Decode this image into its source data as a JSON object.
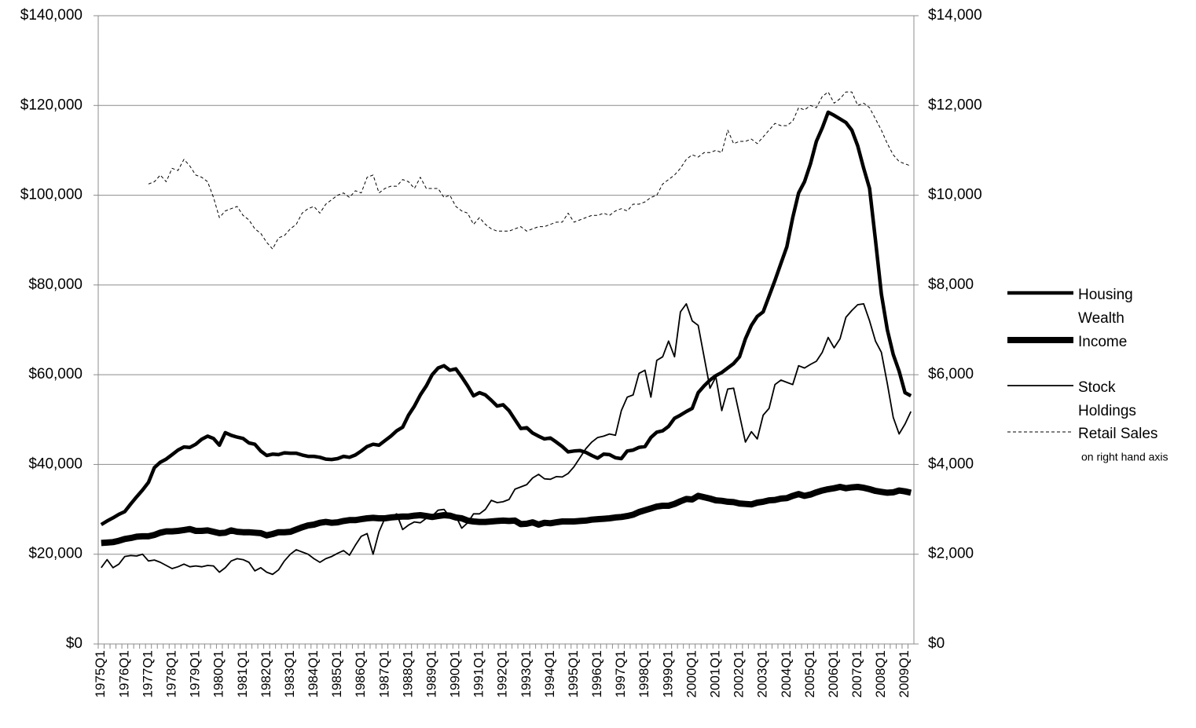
{
  "chart_data": {
    "type": "line",
    "categories": [
      "1975Q1",
      null,
      null,
      null,
      "1976Q1",
      null,
      null,
      null,
      "1977Q1",
      null,
      null,
      null,
      "1978Q1",
      null,
      null,
      null,
      "1979Q1",
      null,
      null,
      null,
      "1980Q1",
      null,
      null,
      null,
      "1981Q1",
      null,
      null,
      null,
      "1982Q1",
      null,
      null,
      null,
      "1983Q1",
      null,
      null,
      null,
      "1984Q1",
      null,
      null,
      null,
      "1985Q1",
      null,
      null,
      null,
      "1986Q1",
      null,
      null,
      null,
      "1987Q1",
      null,
      null,
      null,
      "1988Q1",
      null,
      null,
      null,
      "1989Q1",
      null,
      null,
      null,
      "1990Q1",
      null,
      null,
      null,
      "1991Q1",
      null,
      null,
      null,
      "1992Q1",
      null,
      null,
      null,
      "1993Q1",
      null,
      null,
      null,
      "1994Q1",
      null,
      null,
      null,
      "1995Q1",
      null,
      null,
      null,
      "1996Q1",
      null,
      null,
      null,
      "1997Q1",
      null,
      null,
      null,
      "1998Q1",
      null,
      null,
      null,
      "1999Q1",
      null,
      null,
      null,
      "2000Q1",
      null,
      null,
      null,
      "2001Q1",
      null,
      null,
      null,
      "2002Q1",
      null,
      null,
      null,
      "2003Q1",
      null,
      null,
      null,
      "2004Q1",
      null,
      null,
      null,
      "2005Q1",
      null,
      null,
      null,
      "2006Q1",
      null,
      null,
      null,
      "2007Q1",
      null,
      null,
      null,
      "2008Q1",
      null,
      null,
      null,
      "2009Q1",
      null
    ],
    "series": [
      {
        "name": "Housing Wealth",
        "color": "#000000",
        "values": [
          26600,
          27400,
          28100,
          28900,
          29500,
          31200,
          32800,
          34300,
          36000,
          39300,
          40500,
          41200,
          42200,
          43200,
          43900,
          43800,
          44500,
          45600,
          46300,
          45800,
          44300,
          47100,
          46500,
          46100,
          45800,
          44800,
          44500,
          43000,
          42000,
          42300,
          42200,
          42600,
          42500,
          42500,
          42100,
          41800,
          41800,
          41600,
          41200,
          41100,
          41300,
          41800,
          41600,
          42100,
          43000,
          44000,
          44500,
          44300,
          45300,
          46300,
          47500,
          48300,
          51000,
          53000,
          55500,
          57500,
          60000,
          61500,
          62000,
          61000,
          61300,
          59500,
          57500,
          55300,
          56000,
          55500,
          54300,
          53000,
          53300,
          52000,
          50000,
          48000,
          48200,
          47000,
          46300,
          45700,
          45900,
          45000,
          44000,
          42800,
          43000,
          43100,
          42700,
          42000,
          41400,
          42300,
          42200,
          41500,
          41300,
          43000,
          43200,
          43800,
          44000,
          46000,
          47200,
          47500,
          48500,
          50300,
          51000,
          51800,
          52500,
          56000,
          57500,
          58800,
          59800,
          60500,
          61500,
          62500,
          64000,
          68000,
          71000,
          73000,
          74000,
          77500,
          81000,
          84800,
          88500,
          95000,
          100500,
          103000,
          107000,
          112000,
          115000,
          118500,
          117800,
          117000,
          116200,
          114500,
          111000,
          106000,
          101500,
          90000,
          78000,
          70000,
          64500,
          60800,
          56000,
          55300
        ]
      },
      {
        "name": "Income",
        "color": "#000000",
        "values": [
          22500,
          22600,
          22700,
          23000,
          23400,
          23600,
          23900,
          24000,
          24000,
          24300,
          24800,
          25100,
          25100,
          25200,
          25400,
          25600,
          25200,
          25200,
          25300,
          25000,
          24700,
          24800,
          25300,
          25000,
          24900,
          24900,
          24800,
          24700,
          24200,
          24500,
          24900,
          24900,
          25000,
          25500,
          26000,
          26400,
          26600,
          27000,
          27200,
          27000,
          27100,
          27400,
          27600,
          27600,
          27800,
          28000,
          28100,
          28000,
          28000,
          28200,
          28300,
          28400,
          28400,
          28600,
          28700,
          28500,
          28300,
          28500,
          28700,
          28600,
          28200,
          28000,
          27500,
          27300,
          27200,
          27200,
          27300,
          27400,
          27500,
          27400,
          27500,
          26700,
          26800,
          27100,
          26600,
          27000,
          26900,
          27100,
          27300,
          27300,
          27300,
          27400,
          27500,
          27700,
          27800,
          27900,
          28000,
          28200,
          28300,
          28500,
          28800,
          29400,
          29800,
          30200,
          30600,
          30800,
          30800,
          31200,
          31800,
          32300,
          32200,
          33000,
          32700,
          32400,
          32000,
          31900,
          31700,
          31600,
          31300,
          31200,
          31100,
          31500,
          31700,
          32000,
          32100,
          32400,
          32500,
          33000,
          33400,
          33000,
          33300,
          33800,
          34200,
          34500,
          34700,
          35000,
          34700,
          34900,
          35000,
          34800,
          34500,
          34100,
          33900,
          33700,
          33800,
          34200,
          34000,
          33700
        ]
      },
      {
        "name": "Stock Holdings",
        "color": "#000000",
        "values": [
          17000,
          18800,
          17000,
          17800,
          19500,
          19700,
          19600,
          20000,
          18500,
          18700,
          18200,
          17500,
          16800,
          17200,
          17800,
          17200,
          17400,
          17200,
          17500,
          17400,
          16000,
          17000,
          18500,
          19000,
          18800,
          18200,
          16300,
          17000,
          16000,
          15500,
          16500,
          18500,
          20000,
          21000,
          20500,
          20000,
          19000,
          18200,
          19000,
          19500,
          20200,
          20800,
          19800,
          22000,
          24000,
          24600,
          20000,
          25000,
          28000,
          28300,
          29000,
          25500,
          26500,
          27200,
          27000,
          28000,
          28500,
          29800,
          30000,
          28300,
          28500,
          25800,
          27000,
          29000,
          29000,
          30000,
          32000,
          31500,
          31700,
          32200,
          34500,
          35000,
          35500,
          37000,
          37800,
          36800,
          36700,
          37300,
          37200,
          38000,
          39500,
          41500,
          43500,
          45000,
          46000,
          46300,
          46800,
          46500,
          52000,
          55000,
          55500,
          60300,
          61000,
          55000,
          63200,
          64000,
          67500,
          64000,
          74000,
          75800,
          72000,
          71000,
          64000,
          57000,
          59500,
          52000,
          56800,
          57000,
          51000,
          45000,
          47300,
          45700,
          51000,
          52500,
          57800,
          58800,
          58300,
          57800,
          62000,
          61500,
          62300,
          63000,
          65000,
          68300,
          66000,
          68000,
          72800,
          74300,
          75600,
          75800,
          72000,
          67500,
          65000,
          58000,
          50500,
          46800,
          49000,
          51800
        ]
      },
      {
        "name": "Retail Sales",
        "color": "#000000",
        "axis": "y2",
        "values": [
          null,
          null,
          null,
          null,
          null,
          null,
          null,
          null,
          10250,
          10300,
          10450,
          10300,
          10600,
          10550,
          10800,
          10650,
          10450,
          10400,
          10300,
          9950,
          9500,
          9650,
          9700,
          9750,
          9550,
          9450,
          9250,
          9150,
          8950,
          8800,
          9050,
          9100,
          9250,
          9350,
          9600,
          9700,
          9750,
          9600,
          9800,
          9900,
          10000,
          10050,
          9950,
          10100,
          10050,
          10400,
          10450,
          10050,
          10150,
          10200,
          10200,
          10350,
          10300,
          10150,
          10400,
          10150,
          10150,
          10150,
          9950,
          10000,
          9750,
          9650,
          9600,
          9350,
          9500,
          9350,
          9250,
          9200,
          9200,
          9200,
          9250,
          9300,
          9200,
          9250,
          9300,
          9300,
          9350,
          9400,
          9400,
          9600,
          9400,
          9450,
          9500,
          9550,
          9550,
          9600,
          9550,
          9650,
          9700,
          9650,
          9800,
          9800,
          9850,
          9950,
          10000,
          10250,
          10350,
          10450,
          10600,
          10800,
          10900,
          10850,
          10950,
          10950,
          11000,
          10950,
          11450,
          11150,
          11200,
          11200,
          11250,
          11150,
          11300,
          11450,
          11600,
          11550,
          11550,
          11650,
          11950,
          11900,
          12000,
          11950,
          12200,
          12300,
          12050,
          12150,
          12300,
          12300,
          12000,
          12050,
          11950,
          11700,
          11450,
          11150,
          10900,
          10750,
          10700,
          10650
        ]
      }
    ],
    "legend_note": "on right hand axis",
    "ylim": [
      0,
      140000
    ],
    "yticks": [
      {
        "value": 0,
        "label": "$0"
      },
      {
        "value": 20000,
        "label": "$20,000"
      },
      {
        "value": 40000,
        "label": "$40,000"
      },
      {
        "value": 60000,
        "label": "$60,000"
      },
      {
        "value": 80000,
        "label": "$80,000"
      },
      {
        "value": 100000,
        "label": "$100,000"
      },
      {
        "value": 120000,
        "label": "$120,000"
      },
      {
        "value": 140000,
        "label": "$140,000"
      }
    ],
    "y2lim": [
      0,
      14000
    ],
    "y2ticks": [
      {
        "value": 0,
        "label": "$0"
      },
      {
        "value": 2000,
        "label": "$2,000"
      },
      {
        "value": 4000,
        "label": "$4,000"
      },
      {
        "value": 6000,
        "label": "$6,000"
      },
      {
        "value": 8000,
        "label": "$8,000"
      },
      {
        "value": 10000,
        "label": "$10,000"
      },
      {
        "value": 12000,
        "label": "$12,000"
      },
      {
        "value": 14000,
        "label": "$14,000"
      }
    ],
    "grid": true,
    "legend": "right"
  }
}
